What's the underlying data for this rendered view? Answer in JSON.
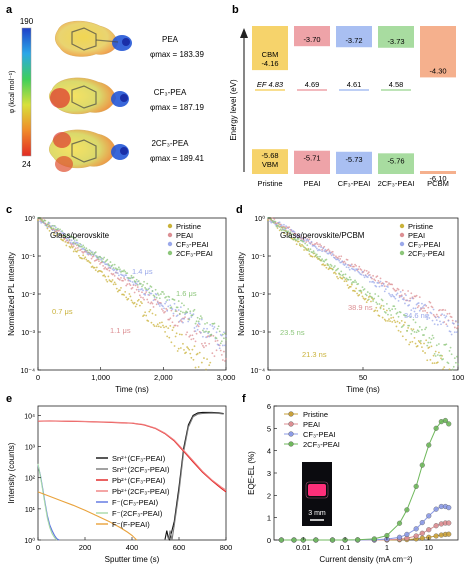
{
  "panels": {
    "a": {
      "label": "a",
      "colorbar": {
        "max": "190",
        "min": "24",
        "axis_label": "φ (kcal mol⁻¹)"
      },
      "molecules": [
        {
          "name": "PEA",
          "phi_label": "φmax",
          "phi_value": "= 183.39"
        },
        {
          "name": "CF₃-PEA",
          "phi_label": "φmax",
          "phi_value": "= 187.19"
        },
        {
          "name": "2CF₃-PEA",
          "phi_label": "φmax",
          "phi_value": "= 189.41"
        }
      ]
    },
    "b": {
      "label": "b",
      "ylabel": "Energy level (eV)",
      "label_cbm": "CBM",
      "label_vbm": "VBM",
      "label_ef": "EF",
      "colors": {
        "Pristine": "#f6d36b",
        "PEAI": "#eea3a8",
        "CF3-PEAI": "#a9bff2",
        "2CF3-PEAI": "#a8dca0",
        "PCBM": "#f5b08d"
      },
      "columns": [
        {
          "name": "Pristine",
          "cbm": "-4.16",
          "ef": "4.83",
          "vbm": "-5.68"
        },
        {
          "name": "PEAI",
          "cbm": "-3.70",
          "ef": "4.69",
          "vbm": "-5.71"
        },
        {
          "name": "CF₃-PEAI",
          "cbm": "-3.72",
          "ef": "4.61",
          "vbm": "-5.73"
        },
        {
          "name": "2CF₃-PEAI",
          "cbm": "-3.73",
          "ef": "4.58",
          "vbm": "-5.76"
        },
        {
          "name": "PCBM",
          "cbm": "-4.30",
          "ef": "",
          "vbm": "-6.10"
        }
      ]
    },
    "c": {
      "label": "c",
      "subtitle": "Glass/perovskite"
    },
    "d": {
      "label": "d",
      "subtitle": "Glass/perovskite/PCBM"
    },
    "e": {
      "label": "e"
    },
    "f": {
      "label": "f",
      "inset_scale": "3 mm"
    }
  },
  "chart_data": [
    {
      "panel": "c",
      "type": "scatter",
      "title": "",
      "xlabel": "Time (ns)",
      "ylabel": "Normalized PL intensity",
      "xlim": [
        0,
        3000
      ],
      "ylim": [
        0.0001,
        1
      ],
      "yscale": "log",
      "x_ticks": [
        "0",
        "1,000",
        "2,000",
        "3,000"
      ],
      "y_ticks": [
        "10⁻⁴",
        "10⁻³",
        "10⁻²",
        "10⁻¹",
        "10⁰"
      ],
      "legend_position": "top-right",
      "series": [
        {
          "name": "Pristine",
          "color": "#c9b23a",
          "lifetime_label": "0.7 μs",
          "tau_ns": 300,
          "floor": 8e-05
        },
        {
          "name": "PEAI",
          "color": "#dc8f93",
          "lifetime_label": "1.1 μs",
          "tau_ns": 360,
          "floor": 8e-05
        },
        {
          "name": "CF₃-PEAI",
          "color": "#9aa8ea",
          "lifetime_label": "1.4 μs",
          "tau_ns": 390,
          "floor": 8e-05
        },
        {
          "name": "2CF₃-PEAI",
          "color": "#8cc67a",
          "lifetime_label": "1.6 μs",
          "tau_ns": 415,
          "floor": 8e-05
        }
      ]
    },
    {
      "panel": "d",
      "type": "scatter",
      "title": "",
      "xlabel": "Time (ns)",
      "ylabel": "Normalized PL intensity",
      "xlim": [
        0,
        100
      ],
      "ylim": [
        0.0001,
        1
      ],
      "yscale": "log",
      "x_ticks": [
        "0",
        "50",
        "100"
      ],
      "legend_position": "top-right",
      "series": [
        {
          "name": "Pristine",
          "color": "#c9b23a",
          "lifetime_label": "21.3 ns",
          "tau_ns": 10.5,
          "floor": 0.0001
        },
        {
          "name": "PEAI",
          "color": "#dc8f93",
          "lifetime_label": "38.9 ns",
          "tau_ns": 15.5,
          "floor": 0.0001
        },
        {
          "name": "CF₃-PEAI",
          "color": "#9aa8ea",
          "lifetime_label": "34.6 ns",
          "tau_ns": 14.5,
          "floor": 0.0001
        },
        {
          "name": "2CF₃-PEAI",
          "color": "#8cc67a",
          "lifetime_label": "23.5 ns",
          "tau_ns": 11.5,
          "floor": 0.0001
        }
      ]
    },
    {
      "panel": "e",
      "type": "line",
      "title": "",
      "xlabel": "Sputter time (s)",
      "ylabel": "Intensity (counts)",
      "xlim": [
        0,
        800
      ],
      "ylim": [
        1,
        20000
      ],
      "yscale": "log",
      "x_ticks": [
        "0",
        "200",
        "400",
        "600",
        "800"
      ],
      "legend_position": "middle-right",
      "series": [
        {
          "name": "Sn²⁺(CF₃-PEAI)",
          "color": "#111111",
          "x": [
            0,
            100,
            200,
            300,
            400,
            500,
            540,
            548,
            556,
            560,
            580,
            600,
            620,
            640,
            660,
            680,
            700,
            740,
            770,
            790
          ],
          "y": [
            1,
            1,
            1,
            1,
            1,
            1,
            1,
            2,
            1,
            1,
            4,
            50,
            900,
            5000,
            10000,
            12000,
            12500,
            12500,
            12000,
            11500
          ]
        },
        {
          "name": "Sn²⁺(2CF₃-PEAI)",
          "color": "#7a7a7a",
          "x": [
            0,
            100,
            200,
            300,
            400,
            500,
            555,
            562,
            570,
            580,
            600,
            620,
            640,
            660,
            680,
            700,
            740,
            770,
            790
          ],
          "y": [
            1,
            1,
            1,
            1,
            1,
            1,
            1,
            2,
            1,
            3,
            35,
            700,
            4200,
            9000,
            11000,
            11500,
            11800,
            11500,
            11000
          ]
        },
        {
          "name": "Pb²⁺(CF₃-PEAI)",
          "color": "#e02020",
          "x": [
            0,
            50,
            100,
            200,
            300,
            400,
            450,
            500,
            540,
            580,
            620,
            660,
            700,
            740,
            780,
            800
          ],
          "y": [
            6500,
            6600,
            6500,
            6300,
            6000,
            5600,
            5000,
            3800,
            2600,
            1500,
            700,
            320,
            150,
            80,
            45,
            35
          ]
        },
        {
          "name": "Pb²⁺(2CF₃-PEAI)",
          "color": "#f08080",
          "x": [
            0,
            50,
            100,
            200,
            300,
            400,
            450,
            500,
            540,
            580,
            620,
            660,
            700,
            740,
            780,
            800
          ],
          "y": [
            6600,
            6700,
            6600,
            6400,
            6100,
            5700,
            5100,
            3900,
            2700,
            1600,
            750,
            350,
            160,
            85,
            50,
            40
          ]
        },
        {
          "name": "F⁻(CF₃-PEAI)",
          "color": "#5b73e0",
          "x": [
            0,
            10,
            20,
            30,
            40,
            50,
            60,
            70,
            80,
            90
          ],
          "y": [
            250,
            120,
            45,
            16,
            6,
            3,
            2,
            1.4,
            1.1,
            1
          ]
        },
        {
          "name": "F⁻(2CF₃-PEAI)",
          "color": "#a7d9a8",
          "x": [
            0,
            10,
            20,
            30,
            40,
            50,
            60,
            70,
            80
          ],
          "y": [
            280,
            110,
            40,
            14,
            5,
            2.5,
            1.6,
            1.2,
            1
          ]
        },
        {
          "name": "F⁻(F-PEAI)",
          "color": "#e9a23b",
          "x": [
            0,
            50,
            100,
            150,
            200,
            250,
            300,
            350,
            380,
            400,
            420
          ],
          "y": [
            35,
            25,
            18,
            13,
            9,
            6,
            4,
            2.5,
            1.8,
            1.4,
            1
          ]
        }
      ]
    },
    {
      "panel": "f",
      "type": "line",
      "title": "",
      "xlabel": "Current density (mA cm⁻²)",
      "ylabel": "EQE-EL (%)",
      "xlim": [
        0.002,
        50
      ],
      "ylim": [
        0,
        6
      ],
      "xscale": "log",
      "x_ticks": [
        "0.01",
        "0.1",
        "1",
        "10"
      ],
      "y_ticks": [
        "0",
        "1",
        "2",
        "3",
        "4",
        "5",
        "6"
      ],
      "legend_position": "top-left",
      "series": [
        {
          "name": "Pristine",
          "color": "#c9a13a",
          "x": [
            0.003,
            0.006,
            0.01,
            0.02,
            0.05,
            0.1,
            0.2,
            0.5,
            1,
            2,
            3,
            5,
            7,
            10,
            15,
            20,
            25,
            30
          ],
          "y": [
            0,
            0,
            0,
            0,
            0,
            0,
            0,
            0,
            0,
            0.01,
            0.02,
            0.05,
            0.08,
            0.12,
            0.18,
            0.22,
            0.25,
            0.26
          ]
        },
        {
          "name": "PEAI",
          "color": "#dc8f93",
          "x": [
            0.003,
            0.006,
            0.01,
            0.02,
            0.05,
            0.1,
            0.2,
            0.5,
            1,
            2,
            3,
            5,
            7,
            10,
            15,
            20,
            25,
            30
          ],
          "y": [
            0,
            0,
            0,
            0,
            0,
            0,
            0,
            0,
            0.01,
            0.04,
            0.08,
            0.18,
            0.3,
            0.46,
            0.64,
            0.72,
            0.76,
            0.76
          ]
        },
        {
          "name": "CF₃-PEAI",
          "color": "#8c9be6",
          "x": [
            0.003,
            0.006,
            0.01,
            0.02,
            0.05,
            0.1,
            0.2,
            0.5,
            1,
            2,
            3,
            5,
            7,
            10,
            15,
            20,
            25,
            30
          ],
          "y": [
            0,
            0,
            0,
            0,
            0,
            0,
            0,
            0.01,
            0.04,
            0.12,
            0.25,
            0.5,
            0.78,
            1.08,
            1.38,
            1.5,
            1.5,
            1.45
          ]
        },
        {
          "name": "2CF₃-PEAI",
          "color": "#6fb85c",
          "x": [
            0.003,
            0.006,
            0.01,
            0.02,
            0.05,
            0.1,
            0.2,
            0.5,
            1,
            2,
            3,
            5,
            7,
            10,
            15,
            20,
            25,
            30
          ],
          "y": [
            0,
            0,
            0,
            0,
            0,
            0,
            0.01,
            0.05,
            0.2,
            0.75,
            1.35,
            2.4,
            3.35,
            4.25,
            5.0,
            5.3,
            5.35,
            5.2
          ]
        }
      ]
    }
  ]
}
